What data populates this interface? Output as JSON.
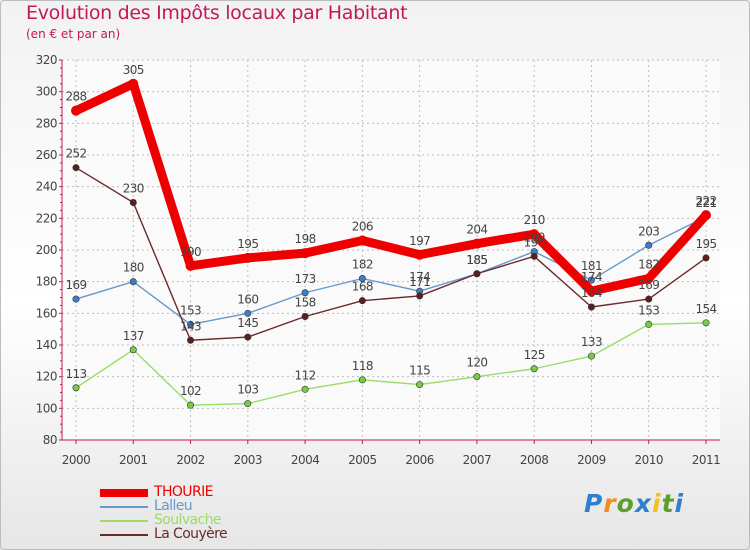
{
  "chart_data": {
    "type": "line",
    "title": "Evolution des Impôts locaux par Habitant",
    "subtitle": "(en € et par an)",
    "xlabel": "",
    "ylabel": "",
    "x": [
      "2000",
      "2001",
      "2002",
      "2003",
      "2004",
      "2005",
      "2006",
      "2007",
      "2008",
      "2009",
      "2010",
      "2011"
    ],
    "ylim": [
      80,
      320
    ],
    "yticks": [
      80,
      100,
      120,
      140,
      160,
      180,
      200,
      220,
      240,
      260,
      280,
      300,
      320
    ],
    "grid": true,
    "legend_position": "bottom-left",
    "series": [
      {
        "name": "Lalleu",
        "color": "#6699cc",
        "marker": "#3a7fcf",
        "values": [
          169,
          180,
          153,
          160,
          173,
          182,
          174,
          185,
          199,
          181,
          203,
          221
        ],
        "labels": [
          "169",
          "180",
          "153",
          "160",
          "173",
          "182",
          "174",
          "185",
          "199",
          "181",
          "203",
          "221"
        ]
      },
      {
        "name": "Soulvache",
        "color": "#99dd66",
        "marker": "#77cc44",
        "values": [
          113,
          137,
          102,
          103,
          112,
          118,
          115,
          120,
          125,
          133,
          153,
          154
        ],
        "labels": [
          "113",
          "137",
          "102",
          "103",
          "112",
          "118",
          "115",
          "120",
          "125",
          "133",
          "153",
          "154"
        ]
      },
      {
        "name": "La Couyère",
        "color": "#6b2a2a",
        "marker": "#5a1f1f",
        "values": [
          252,
          230,
          143,
          145,
          158,
          168,
          171,
          185,
          196,
          164,
          169,
          195
        ],
        "labels": [
          "252",
          "230",
          "143",
          "145",
          "158",
          "168",
          "171",
          "185",
          "196",
          "164",
          "169",
          "195"
        ]
      },
      {
        "name": "THOURIE",
        "color": "#ee0000",
        "marker": "#ee0000",
        "values": [
          288,
          305,
          190,
          195,
          198,
          206,
          197,
          204,
          210,
          174,
          182,
          222
        ],
        "labels": [
          "288",
          "305",
          "190",
          "195",
          "198",
          "206",
          "197",
          "204",
          "210",
          "174",
          "182",
          "222"
        ]
      }
    ],
    "legend_order": [
      "THOURIE",
      "Lalleu",
      "Soulvache",
      "La Couyère"
    ]
  },
  "logo": {
    "letters": [
      "P",
      "r",
      "o",
      "x",
      "i",
      "t",
      "i"
    ],
    "colors": [
      "#2f7fcf",
      "#f28c1e",
      "#5aa02c",
      "#2f7fcf",
      "#f2c21e",
      "#5aa02c",
      "#2f7fcf"
    ]
  }
}
